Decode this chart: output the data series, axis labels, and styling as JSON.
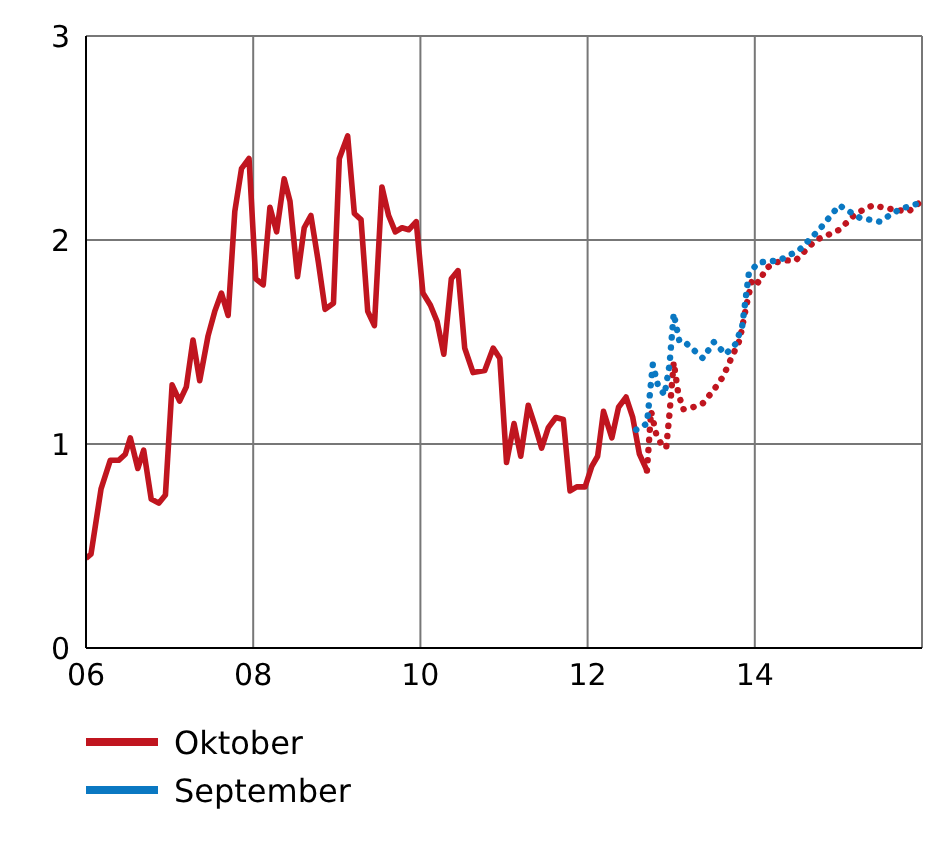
{
  "chart_data": {
    "type": "line",
    "xlim": [
      2006,
      2016
    ],
    "xticks": [
      {
        "value": 2006,
        "label": "06"
      },
      {
        "value": 2008,
        "label": "08"
      },
      {
        "value": 2010,
        "label": "10"
      },
      {
        "value": 2012,
        "label": "12"
      },
      {
        "value": 2014,
        "label": "14"
      },
      {
        "value": 2016,
        "label": null
      }
    ],
    "ylim": [
      0,
      3
    ],
    "yticks": [
      0,
      1,
      2,
      3
    ],
    "grid": true,
    "legend": "bottom",
    "marker": "none",
    "series": [
      {
        "name": "Oktober",
        "color": "#c0151f",
        "line_style": "solid",
        "x": [
          2006.0,
          2006.06,
          2006.18,
          2006.29,
          2006.39,
          2006.47,
          2006.53,
          2006.62,
          2006.69,
          2006.78,
          2006.87,
          2006.95,
          2007.03,
          2007.12,
          2007.2,
          2007.28,
          2007.36,
          2007.46,
          2007.54,
          2007.62,
          2007.7,
          2007.78,
          2007.86,
          2007.95,
          2008.03,
          2008.12,
          2008.2,
          2008.28,
          2008.37,
          2008.44,
          2008.53,
          2008.61,
          2008.69,
          2008.78,
          2008.86,
          2008.96,
          2009.03,
          2009.13,
          2009.21,
          2009.29,
          2009.37,
          2009.45,
          2009.54,
          2009.62,
          2009.7,
          2009.78,
          2009.86,
          2009.95,
          2010.03,
          2010.12,
          2010.2,
          2010.28,
          2010.37,
          2010.45,
          2010.53,
          2010.63,
          2010.77,
          2010.87,
          2010.95,
          2011.03,
          2011.12,
          2011.2,
          2011.29,
          2011.37,
          2011.45,
          2011.53,
          2011.62,
          2011.71,
          2011.79,
          2011.87,
          2011.97,
          2012.05,
          2012.12,
          2012.19,
          2012.29,
          2012.37,
          2012.46,
          2012.54,
          2012.62,
          2012.71
        ],
        "values": [
          0.44,
          0.46,
          0.78,
          0.92,
          0.92,
          0.95,
          1.03,
          0.88,
          0.97,
          0.73,
          0.71,
          0.75,
          1.29,
          1.21,
          1.28,
          1.51,
          1.31,
          1.53,
          1.65,
          1.74,
          1.63,
          2.14,
          2.35,
          2.4,
          1.81,
          1.78,
          2.16,
          2.04,
          2.3,
          2.19,
          1.82,
          2.06,
          2.12,
          1.89,
          1.66,
          1.69,
          2.4,
          2.51,
          2.13,
          2.1,
          1.65,
          1.58,
          2.26,
          2.12,
          2.04,
          2.06,
          2.05,
          2.09,
          1.74,
          1.68,
          1.6,
          1.44,
          1.81,
          1.85,
          1.47,
          1.35,
          1.36,
          1.47,
          1.42,
          0.91,
          1.1,
          0.94,
          1.19,
          1.09,
          0.98,
          1.08,
          1.13,
          1.12,
          0.77,
          0.79,
          0.79,
          0.89,
          0.94,
          1.16,
          1.03,
          1.18,
          1.23,
          1.13,
          0.95,
          0.87
        ]
      },
      {
        "color": "#c0151f",
        "line_style": "dotted",
        "x": [
          2012.71,
          2012.76,
          2012.82,
          2012.88,
          2012.94,
          2012.98,
          2013.03,
          2013.08,
          2013.14,
          2013.26,
          2013.38,
          2013.5,
          2013.62,
          2013.74,
          2013.82,
          2013.9,
          2013.97,
          2014.05,
          2014.13,
          2014.25,
          2014.37,
          2014.49,
          2014.61,
          2014.73,
          2014.85,
          2015.01,
          2015.21,
          2015.41,
          2015.65,
          2015.84,
          2015.96
        ],
        "values": [
          0.87,
          1.16,
          1.05,
          1.0,
          0.98,
          1.15,
          1.4,
          1.26,
          1.17,
          1.18,
          1.2,
          1.26,
          1.33,
          1.44,
          1.51,
          1.68,
          1.81,
          1.79,
          1.86,
          1.89,
          1.9,
          1.9,
          1.95,
          2.0,
          2.02,
          2.05,
          2.13,
          2.17,
          2.15,
          2.14,
          2.18
        ]
      },
      {
        "name": "September",
        "color": "#0a78c2",
        "line_style": "dotted",
        "x": [
          2012.58,
          2012.71,
          2012.78,
          2012.84,
          2012.92,
          2012.98,
          2013.03,
          2013.1,
          2013.19,
          2013.38,
          2013.51,
          2013.65,
          2013.77,
          2013.85,
          2013.93,
          2014.05,
          2014.29,
          2014.53,
          2014.77,
          2015.01,
          2015.25,
          2015.49,
          2015.73,
          2015.96
        ],
        "values": [
          1.07,
          1.1,
          1.39,
          1.29,
          1.24,
          1.39,
          1.64,
          1.5,
          1.49,
          1.42,
          1.5,
          1.44,
          1.49,
          1.58,
          1.84,
          1.89,
          1.9,
          1.95,
          2.05,
          2.17,
          2.11,
          2.09,
          2.15,
          2.18
        ]
      }
    ]
  }
}
